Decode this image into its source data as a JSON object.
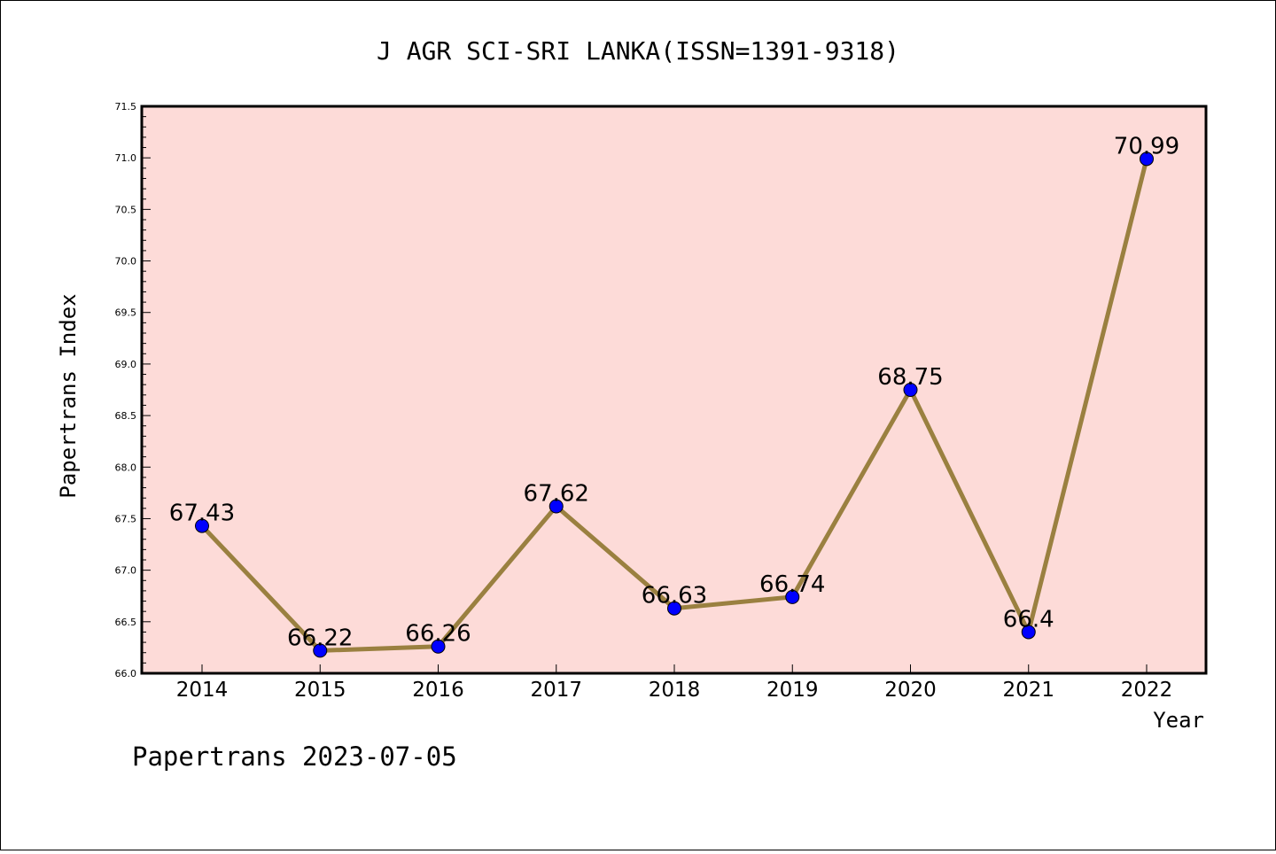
{
  "chart_data": {
    "type": "line",
    "title": "J AGR SCI-SRI LANKA(ISSN=1391-9318)",
    "xlabel": "Year",
    "ylabel": "Papertrans Index",
    "x": [
      "2014",
      "2015",
      "2016",
      "2017",
      "2018",
      "2019",
      "2020",
      "2021",
      "2022"
    ],
    "series": [
      {
        "values": [
          67.43,
          66.22,
          66.26,
          67.62,
          66.63,
          66.74,
          68.75,
          66.4,
          70.99
        ]
      }
    ],
    "data_labels": [
      "67.43",
      "66.22",
      "66.26",
      "67.62",
      "66.63",
      "66.74",
      "68.75",
      "66.4",
      "70.99"
    ],
    "ylim": [
      66.0,
      71.5
    ],
    "y_ticks": [
      "66.0",
      "66.5",
      "67.0",
      "67.5",
      "68.0",
      "68.5",
      "69.0",
      "69.5",
      "70.0",
      "70.5",
      "71.0",
      "71.5"
    ],
    "grid": false,
    "legend": "none",
    "colors": {
      "plot_background": "#fddbd8",
      "line": "#9a8040",
      "marker": "#0000ff"
    }
  },
  "footer": {
    "text": "Papertrans 2023-07-05"
  }
}
